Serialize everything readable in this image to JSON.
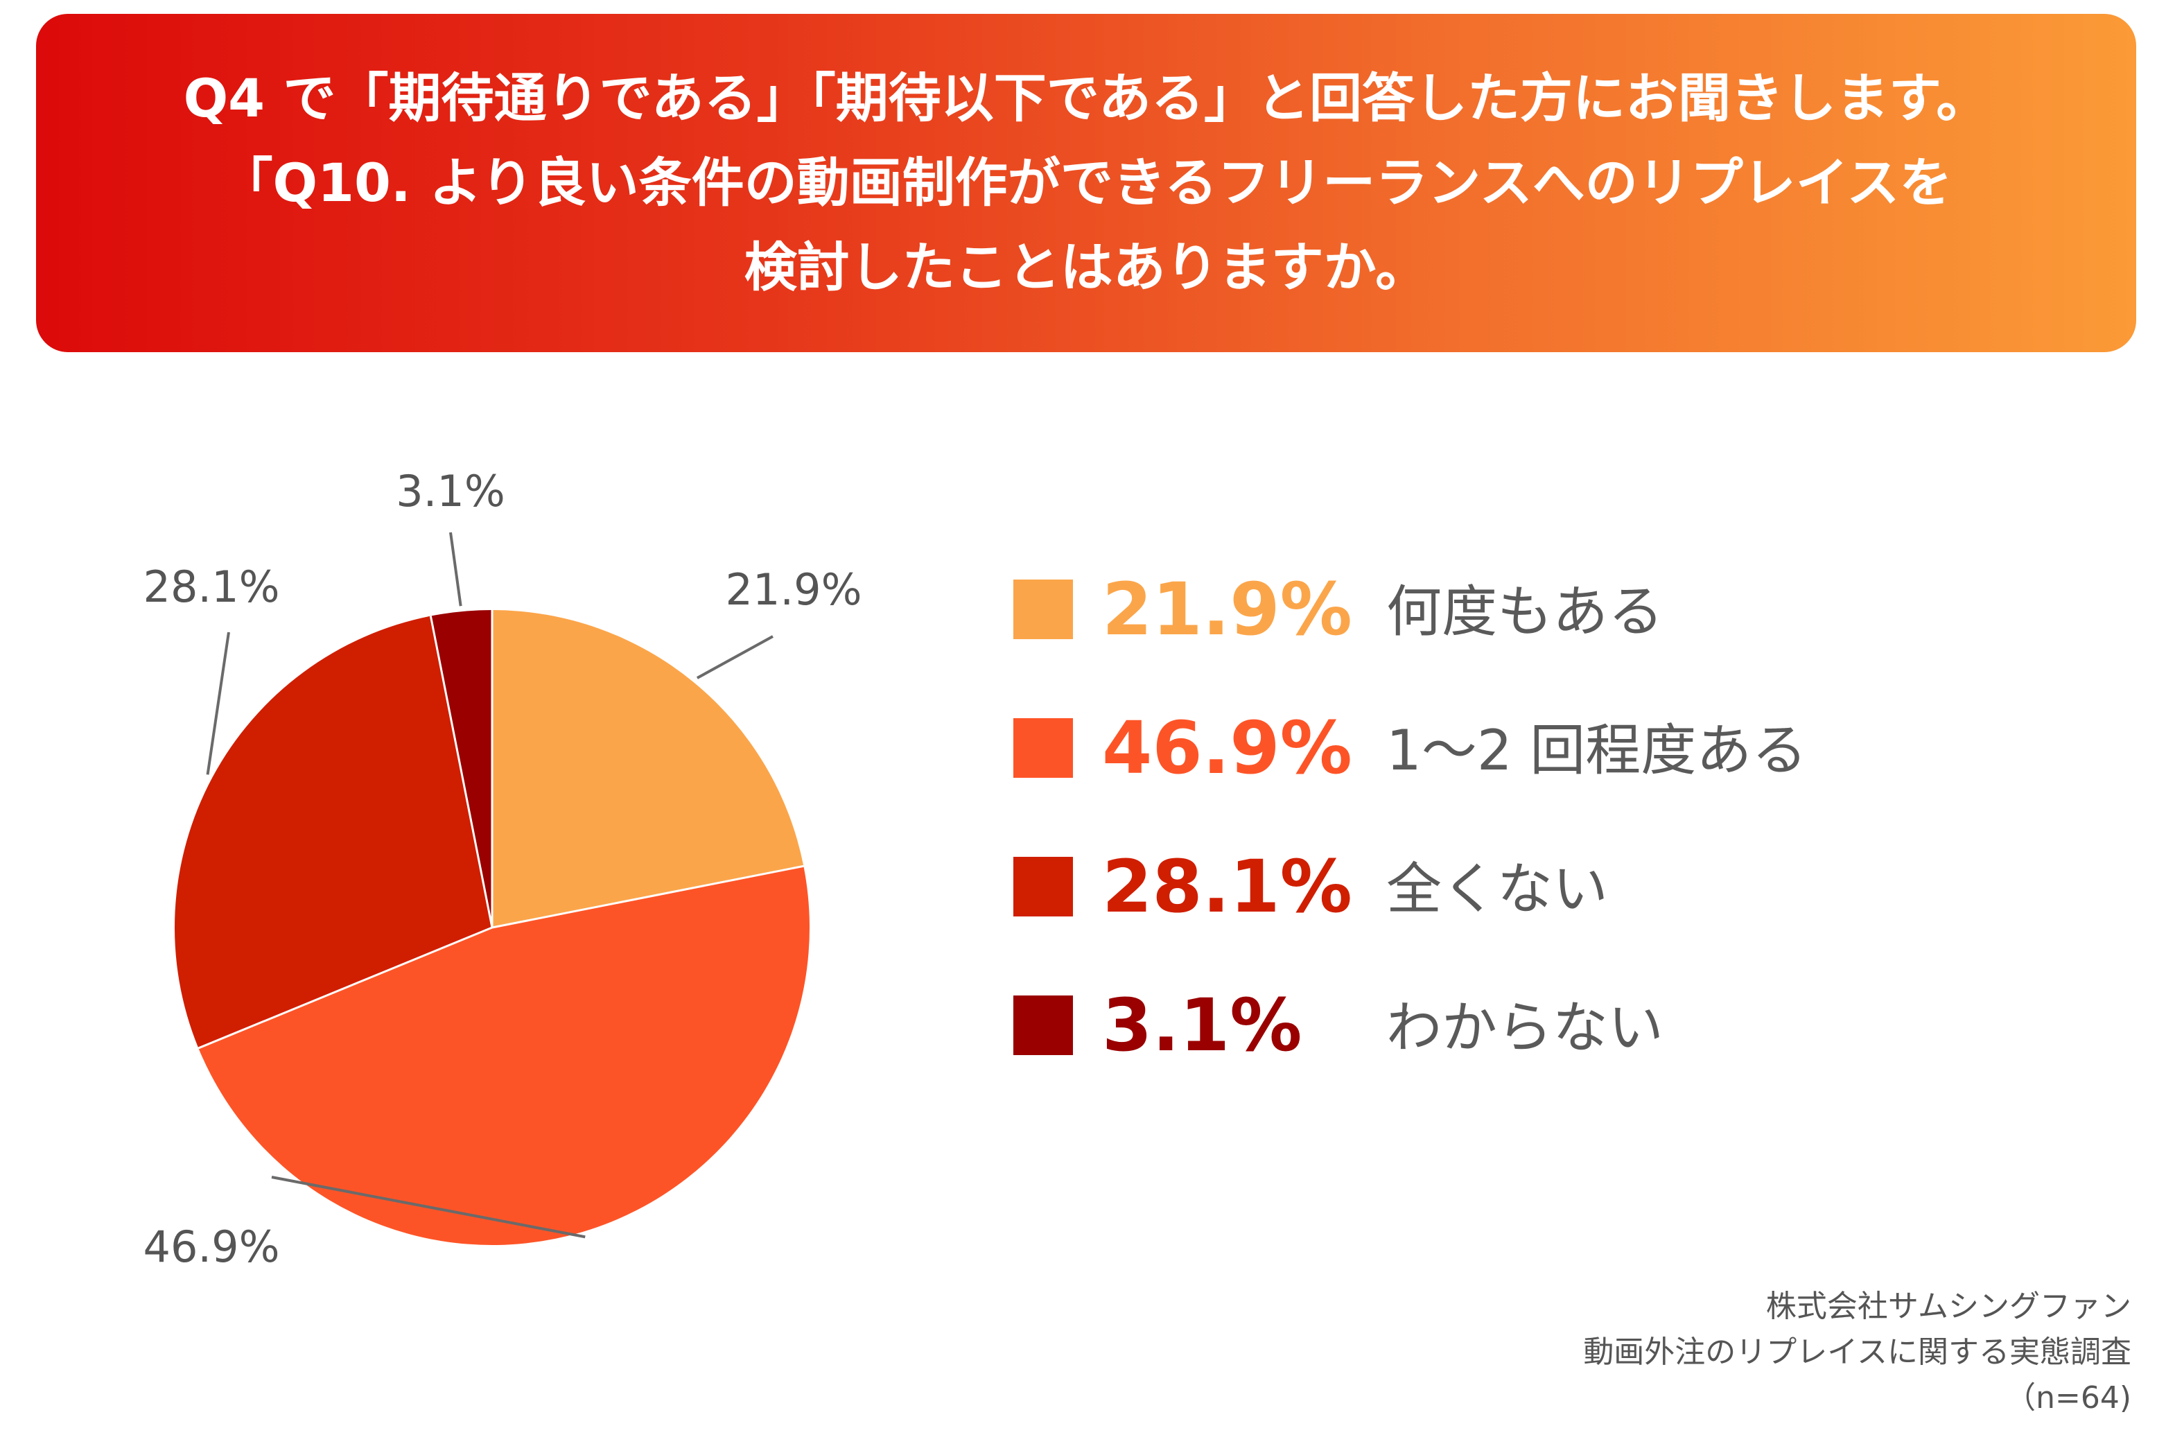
{
  "header": {
    "lines": [
      "Q4 で「期待通りである」「期待以下である」と回答した方にお聞きします。",
      "「Q10. より良い条件の動画制作ができるフリーランスへのリプレイスを",
      "検討したことはありますか。"
    ]
  },
  "chart_data": {
    "type": "pie",
    "start": "12 o'clock, clockwise",
    "slices": [
      {
        "label": "何度もある",
        "value": 21.9,
        "display": "21.9%",
        "color": "#fba54a"
      },
      {
        "label": "1〜2 回程度ある",
        "value": 46.9,
        "display": "46.9%",
        "color": "#fd5427"
      },
      {
        "label": "全くない",
        "value": 28.1,
        "display": "28.1%",
        "color": "#d01e00"
      },
      {
        "label": "わからない",
        "value": 3.1,
        "display": "3.1%",
        "color": "#9a0000"
      }
    ],
    "legend_placement": "right"
  },
  "colors": {
    "pct_text": [
      "#fba54a",
      "#fd5427",
      "#d01e00",
      "#9a0000"
    ],
    "label_text": "#5a5a5a"
  },
  "source": {
    "lines": [
      "株式会社サムシングファン",
      "動画外注のリプレイスに関する実態調査",
      "（n=64)"
    ]
  }
}
